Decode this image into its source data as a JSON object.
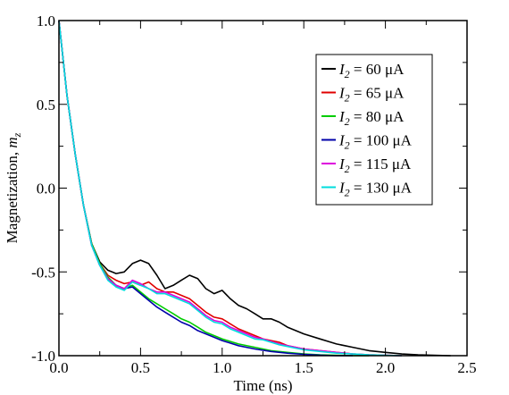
{
  "chart_data": {
    "type": "line",
    "title": "",
    "xlabel": "Time (ns)",
    "ylabel_main": "Magnetization, ",
    "ylabel_var": "m",
    "ylabel_sub": "z",
    "xlim": [
      0.0,
      2.5
    ],
    "ylim": [
      -1.0,
      1.0
    ],
    "xticks": [
      0.0,
      0.5,
      1.0,
      1.5,
      2.0,
      2.5
    ],
    "xtick_labels": [
      "0.0",
      "0.5",
      "1.0",
      "1.5",
      "2.0",
      "2.5"
    ],
    "yticks": [
      -1.0,
      -0.5,
      0.0,
      0.5,
      1.0
    ],
    "ytick_labels": [
      "-1.0",
      "-0.5",
      "0.0",
      "0.5",
      "1.0"
    ],
    "grid": false,
    "legend_position": "top-right",
    "legend_symbol": "I",
    "legend_sub": "2",
    "series": [
      {
        "name": "60 μA",
        "color": "#000000",
        "x": [
          0.0,
          0.05,
          0.1,
          0.15,
          0.2,
          0.25,
          0.3,
          0.35,
          0.4,
          0.45,
          0.5,
          0.55,
          0.6,
          0.65,
          0.7,
          0.75,
          0.8,
          0.85,
          0.9,
          0.95,
          1.0,
          1.05,
          1.1,
          1.15,
          1.2,
          1.25,
          1.3,
          1.35,
          1.4,
          1.45,
          1.5,
          1.6,
          1.7,
          1.8,
          1.9,
          2.0,
          2.1,
          2.2,
          2.3,
          2.4
        ],
        "y": [
          1.0,
          0.55,
          0.2,
          -0.1,
          -0.33,
          -0.44,
          -0.49,
          -0.51,
          -0.5,
          -0.45,
          -0.43,
          -0.45,
          -0.52,
          -0.6,
          -0.58,
          -0.55,
          -0.52,
          -0.54,
          -0.6,
          -0.63,
          -0.61,
          -0.66,
          -0.7,
          -0.72,
          -0.75,
          -0.78,
          -0.78,
          -0.8,
          -0.83,
          -0.85,
          -0.87,
          -0.9,
          -0.93,
          -0.95,
          -0.97,
          -0.98,
          -0.99,
          -0.995,
          -0.998,
          -1.0
        ]
      },
      {
        "name": "65 μA",
        "color": "#e00000",
        "x": [
          0.0,
          0.05,
          0.1,
          0.15,
          0.2,
          0.25,
          0.3,
          0.35,
          0.4,
          0.45,
          0.5,
          0.55,
          0.6,
          0.65,
          0.7,
          0.75,
          0.8,
          0.85,
          0.9,
          0.95,
          1.0,
          1.05,
          1.1,
          1.15,
          1.2,
          1.25,
          1.3,
          1.35,
          1.4,
          1.45,
          1.5,
          1.6,
          1.7,
          1.8,
          1.9,
          2.0,
          2.1
        ],
        "y": [
          1.0,
          0.55,
          0.2,
          -0.1,
          -0.33,
          -0.45,
          -0.52,
          -0.55,
          -0.57,
          -0.56,
          -0.58,
          -0.56,
          -0.6,
          -0.62,
          -0.62,
          -0.64,
          -0.66,
          -0.7,
          -0.74,
          -0.77,
          -0.78,
          -0.81,
          -0.84,
          -0.86,
          -0.88,
          -0.9,
          -0.91,
          -0.92,
          -0.94,
          -0.95,
          -0.96,
          -0.97,
          -0.98,
          -0.99,
          -0.995,
          -0.998,
          -1.0
        ]
      },
      {
        "name": "80 μA",
        "color": "#00cc00",
        "x": [
          0.0,
          0.05,
          0.1,
          0.15,
          0.2,
          0.25,
          0.3,
          0.35,
          0.4,
          0.45,
          0.5,
          0.55,
          0.6,
          0.65,
          0.7,
          0.75,
          0.8,
          0.85,
          0.9,
          0.95,
          1.0,
          1.1,
          1.2,
          1.3,
          1.4,
          1.5,
          1.6,
          1.7,
          1.8,
          1.9
        ],
        "y": [
          1.0,
          0.55,
          0.2,
          -0.1,
          -0.33,
          -0.45,
          -0.53,
          -0.58,
          -0.6,
          -0.58,
          -0.62,
          -0.66,
          -0.69,
          -0.72,
          -0.75,
          -0.78,
          -0.8,
          -0.83,
          -0.86,
          -0.88,
          -0.9,
          -0.93,
          -0.95,
          -0.97,
          -0.98,
          -0.99,
          -0.995,
          -0.998,
          -1.0,
          -1.0
        ]
      },
      {
        "name": "100 μA",
        "color": "#0000aa",
        "x": [
          0.0,
          0.05,
          0.1,
          0.15,
          0.2,
          0.25,
          0.3,
          0.35,
          0.4,
          0.45,
          0.5,
          0.55,
          0.6,
          0.65,
          0.7,
          0.75,
          0.8,
          0.85,
          0.9,
          0.95,
          1.0,
          1.1,
          1.2,
          1.3,
          1.4,
          1.5,
          1.6,
          1.7,
          1.8
        ],
        "y": [
          1.0,
          0.55,
          0.2,
          -0.1,
          -0.34,
          -0.46,
          -0.54,
          -0.58,
          -0.6,
          -0.59,
          -0.63,
          -0.67,
          -0.71,
          -0.74,
          -0.77,
          -0.8,
          -0.82,
          -0.85,
          -0.87,
          -0.89,
          -0.91,
          -0.94,
          -0.96,
          -0.975,
          -0.985,
          -0.992,
          -0.997,
          -1.0,
          -1.0
        ]
      },
      {
        "name": "115 μA",
        "color": "#dd00dd",
        "x": [
          0.0,
          0.05,
          0.1,
          0.15,
          0.2,
          0.25,
          0.3,
          0.35,
          0.4,
          0.45,
          0.5,
          0.55,
          0.6,
          0.65,
          0.7,
          0.75,
          0.8,
          0.85,
          0.9,
          0.95,
          1.0,
          1.05,
          1.1,
          1.15,
          1.2,
          1.25,
          1.3,
          1.35,
          1.4,
          1.45,
          1.5,
          1.6,
          1.7,
          1.8,
          1.9,
          2.0,
          2.1
        ],
        "y": [
          1.0,
          0.55,
          0.2,
          -0.1,
          -0.34,
          -0.46,
          -0.54,
          -0.58,
          -0.6,
          -0.55,
          -0.57,
          -0.6,
          -0.62,
          -0.62,
          -0.64,
          -0.66,
          -0.68,
          -0.72,
          -0.76,
          -0.79,
          -0.8,
          -0.83,
          -0.85,
          -0.87,
          -0.89,
          -0.9,
          -0.915,
          -0.93,
          -0.94,
          -0.95,
          -0.96,
          -0.97,
          -0.98,
          -0.99,
          -0.995,
          -0.998,
          -1.0
        ]
      },
      {
        "name": "130 μA",
        "color": "#00dddd",
        "x": [
          0.0,
          0.05,
          0.1,
          0.15,
          0.2,
          0.25,
          0.3,
          0.35,
          0.4,
          0.45,
          0.5,
          0.55,
          0.6,
          0.65,
          0.7,
          0.75,
          0.8,
          0.85,
          0.9,
          0.95,
          1.0,
          1.05,
          1.1,
          1.15,
          1.2,
          1.25,
          1.3,
          1.35,
          1.4,
          1.45,
          1.5,
          1.6,
          1.7,
          1.8,
          1.9,
          2.0,
          2.1
        ],
        "y": [
          1.0,
          0.55,
          0.2,
          -0.1,
          -0.34,
          -0.46,
          -0.55,
          -0.59,
          -0.61,
          -0.56,
          -0.58,
          -0.6,
          -0.63,
          -0.63,
          -0.65,
          -0.67,
          -0.69,
          -0.73,
          -0.77,
          -0.8,
          -0.81,
          -0.84,
          -0.86,
          -0.88,
          -0.9,
          -0.905,
          -0.92,
          -0.935,
          -0.945,
          -0.955,
          -0.965,
          -0.975,
          -0.985,
          -0.99,
          -0.995,
          -0.998,
          -1.0
        ]
      }
    ]
  }
}
